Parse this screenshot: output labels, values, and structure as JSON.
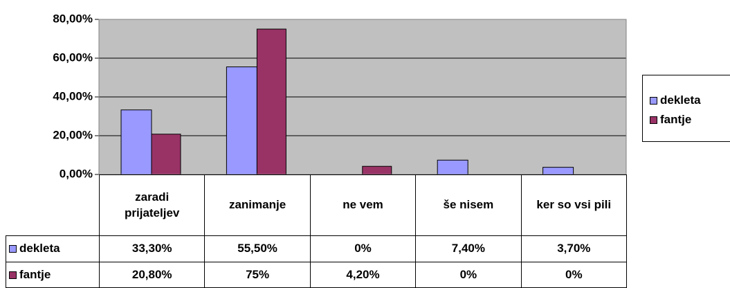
{
  "chart_data": {
    "type": "bar",
    "categories": [
      "zaradi prijateljev",
      "zanimanje",
      "ne vem",
      "še nisem",
      "ker so vsi pili"
    ],
    "series": [
      {
        "name": "dekleta",
        "color": "#9999ff",
        "values": [
          33.3,
          55.5,
          0,
          7.4,
          3.7
        ],
        "value_labels": [
          "33,30%",
          "55,50%",
          "0%",
          "7,40%",
          "3,70%"
        ]
      },
      {
        "name": "fantje",
        "color": "#993366",
        "values": [
          20.8,
          75,
          4.2,
          0,
          0
        ],
        "value_labels": [
          "20,80%",
          "75%",
          "4,20%",
          "0%",
          "0%"
        ]
      }
    ],
    "ylim": [
      0,
      80
    ],
    "yticks": [
      {
        "value": 0,
        "label": "0,00%"
      },
      {
        "value": 20,
        "label": "20,00%"
      },
      {
        "value": 40,
        "label": "40,00%"
      },
      {
        "value": 60,
        "label": "60,00%"
      },
      {
        "value": 80,
        "label": "80,00%"
      }
    ],
    "grid": true,
    "legend": "right",
    "plot_background": "#c0c0c0"
  }
}
